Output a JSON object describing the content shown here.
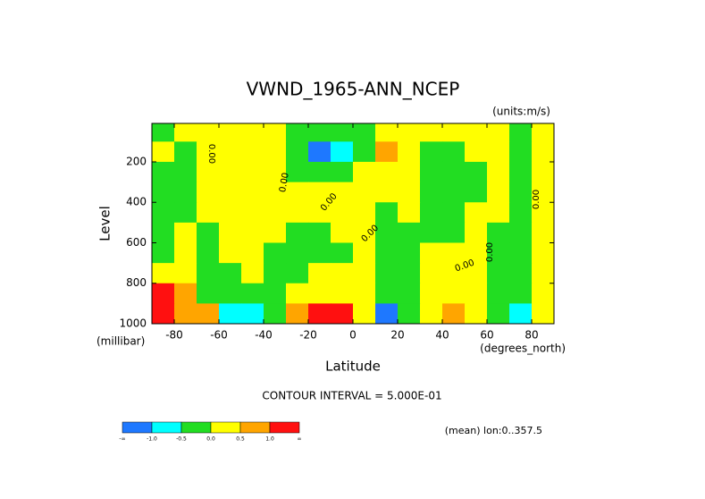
{
  "chart_data": {
    "type": "contour",
    "title": "VWND_1965-ANN_NCEP",
    "units_label": "(units:m/s)",
    "x_label": "Latitude",
    "y_label": "Level",
    "x_units": "(degrees_north)",
    "y_units": "(millibar)",
    "contour_interval_note": "CONTOUR INTERVAL = 5.000E-01",
    "footer": "(mean) lon:0..357.5",
    "contour_label": "0.00",
    "xlim": [
      -90,
      90
    ],
    "ylim": [
      1000,
      10
    ],
    "xticks": [
      -80,
      -60,
      -40,
      -20,
      0,
      20,
      40,
      60,
      80
    ],
    "yticks": [
      200,
      400,
      600,
      800,
      1000
    ],
    "x": [
      -85,
      -75,
      -65,
      -55,
      -45,
      -35,
      -25,
      -15,
      -5,
      5,
      15,
      25,
      35,
      45,
      55,
      65,
      75,
      85
    ],
    "y": [
      50,
      150,
      250,
      350,
      450,
      550,
      650,
      750,
      850,
      950
    ],
    "z": [
      [
        -0.2,
        0.2,
        0.2,
        0.2,
        0.2,
        0.1,
        -0.2,
        -0.3,
        -0.2,
        -0.1,
        0.2,
        0.2,
        0.1,
        0.1,
        0.2,
        0.2,
        -0.1,
        0.1
      ],
      [
        0.1,
        -0.2,
        0.2,
        0.2,
        0.2,
        0.1,
        -0.4,
        -1.2,
        -0.6,
        -0.2,
        0.6,
        0.2,
        -0.2,
        -0.3,
        0.2,
        0.2,
        -0.2,
        0.1
      ],
      [
        -0.2,
        -0.3,
        0.2,
        0.2,
        0.2,
        0.2,
        -0.2,
        -0.3,
        -0.2,
        0.1,
        0.2,
        0.2,
        -0.2,
        -0.3,
        -0.2,
        0.2,
        -0.2,
        0.1
      ],
      [
        -0.2,
        -0.3,
        0.2,
        0.2,
        0.2,
        0.2,
        0.1,
        0.2,
        0.2,
        0.1,
        0.2,
        0.2,
        -0.2,
        -0.2,
        -0.2,
        0.2,
        -0.2,
        0.1
      ],
      [
        -0.2,
        -0.3,
        0.2,
        0.2,
        0.2,
        0.2,
        0.1,
        0.2,
        0.2,
        0.1,
        -0.2,
        0.1,
        -0.2,
        -0.2,
        0.2,
        0.2,
        -0.2,
        0.1
      ],
      [
        -0.3,
        0.2,
        -0.2,
        0.2,
        0.2,
        0.2,
        -0.2,
        -0.2,
        0.2,
        0.1,
        -0.2,
        -0.2,
        -0.2,
        -0.2,
        0.2,
        -0.2,
        -0.2,
        0.2
      ],
      [
        -0.3,
        0.2,
        -0.2,
        0.2,
        0.2,
        -0.2,
        -0.3,
        -0.2,
        -0.2,
        0.1,
        -0.2,
        -0.2,
        0.2,
        0.2,
        0.2,
        -0.2,
        -0.2,
        0.2
      ],
      [
        0.3,
        0.2,
        -0.2,
        -0.2,
        0.2,
        -0.3,
        -0.2,
        0.2,
        0.2,
        0.2,
        -0.2,
        -0.2,
        0.2,
        0.2,
        0.1,
        -0.2,
        -0.2,
        0.2
      ],
      [
        1.2,
        0.6,
        -0.2,
        -0.2,
        -0.2,
        -0.2,
        0.2,
        0.3,
        0.3,
        0.2,
        -0.2,
        -0.3,
        0.2,
        0.2,
        0.2,
        -0.2,
        -0.2,
        0.2
      ],
      [
        1.2,
        0.7,
        0.6,
        -0.6,
        -0.7,
        -0.2,
        0.6,
        1.2,
        1.1,
        0.2,
        -1.2,
        -0.3,
        0.2,
        0.6,
        0.2,
        -0.2,
        -0.6,
        0.2
      ]
    ],
    "colorbar": {
      "levels": [
        -1.0,
        -0.5,
        0,
        0.5,
        1.0
      ],
      "labels": [
        "-∞",
        "-1.0",
        "-0.5",
        "0.0",
        "0.5",
        "1.0",
        "∞"
      ],
      "colors": [
        "#1e78ff",
        "#00ffff",
        "#22dd22",
        "#ffff00",
        "#ffa500",
        "#ff1010"
      ]
    }
  }
}
